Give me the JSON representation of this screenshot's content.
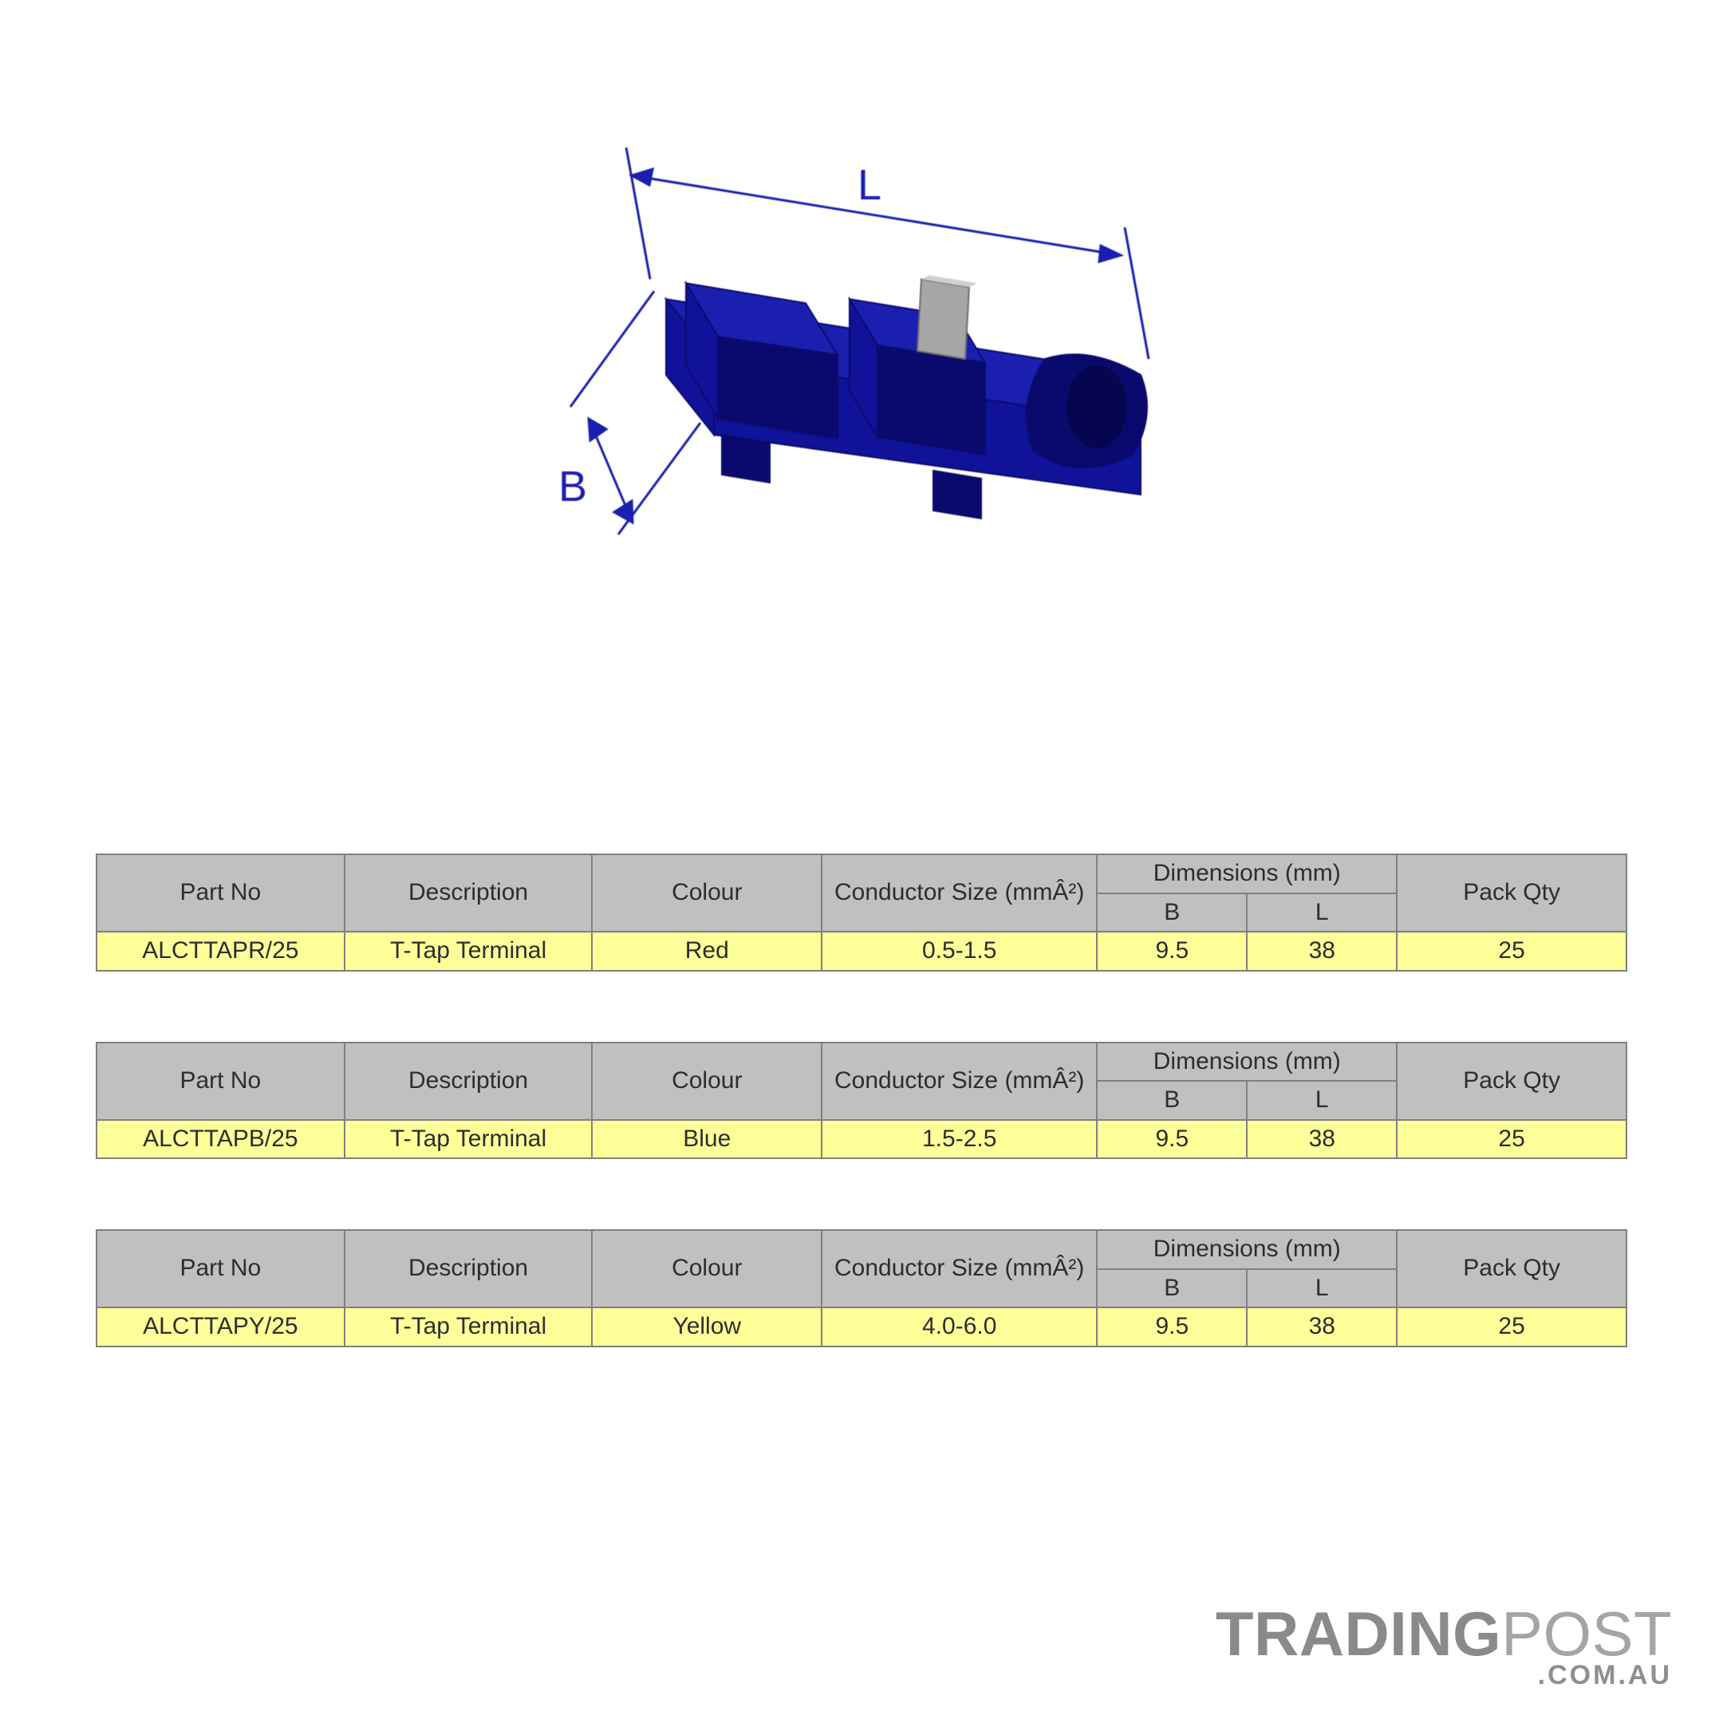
{
  "colors": {
    "table_border": "#808080",
    "header_bg": "#c0c0c0",
    "header_fg": "#2d2d2d",
    "row_bg": "#ffff99",
    "row_fg": "#2d2d2d",
    "diagram_body": "#1a1fb0",
    "diagram_body_dark": "#0a0a6e",
    "diagram_metal": "#a6a6a6",
    "diagram_line": "#1a1fb0",
    "diagram_label": "#1a1fb0",
    "watermark_primary": "#8a8a8a",
    "watermark_secondary": "#a5a5a5"
  },
  "diagram": {
    "labels": {
      "L": "L",
      "B": "B"
    }
  },
  "columns": {
    "part": "Part No",
    "desc": "Description",
    "colour": "Colour",
    "conductor": "Conductor Size (mmÂ²)",
    "dimensions": "Dimensions (mm)",
    "dim_b": "B",
    "dim_l": "L",
    "qty": "Pack Qty"
  },
  "tables": [
    {
      "part": "ALCTTAPR/25",
      "desc": "T-Tap Terminal",
      "colour": "Red",
      "conductor": "0.5-1.5",
      "b": "9.5",
      "l": "38",
      "qty": "25"
    },
    {
      "part": "ALCTTAPB/25",
      "desc": "T-Tap Terminal",
      "colour": "Blue",
      "conductor": "1.5-2.5",
      "b": "9.5",
      "l": "38",
      "qty": "25"
    },
    {
      "part": "ALCTTAPY/25",
      "desc": "T-Tap Terminal",
      "colour": "Yellow",
      "conductor": "4.0-6.0",
      "b": "9.5",
      "l": "38",
      "qty": "25"
    }
  ],
  "watermark": {
    "line1a": "TRADING",
    "line1b": "POST",
    "line2": ".COM.AU"
  }
}
